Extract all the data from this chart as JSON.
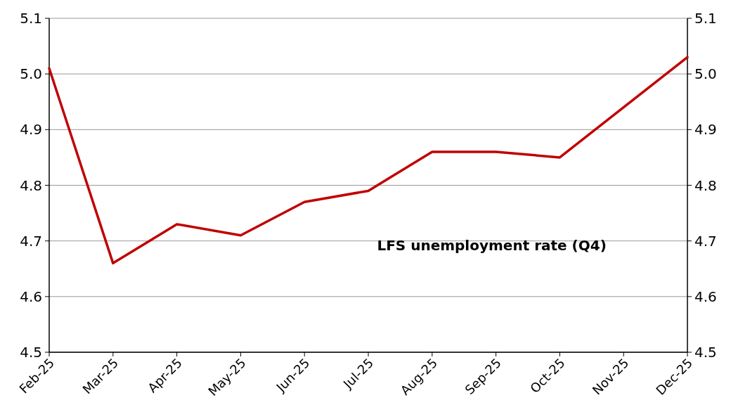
{
  "chart_data": {
    "type": "line",
    "categories": [
      "Feb-25",
      "Mar-25",
      "Apr-25",
      "May-25",
      "Jun-25",
      "Jul-25",
      "Aug-25",
      "Sep-25",
      "Oct-25",
      "Nov-25",
      "Dec-25"
    ],
    "series": [
      {
        "name": "LFS unemployment rate (Q4)",
        "color": "#c00000",
        "values": [
          5.01,
          4.66,
          4.73,
          4.71,
          4.77,
          4.79,
          4.86,
          4.86,
          4.85,
          4.94,
          5.03
        ]
      }
    ],
    "ylim": [
      4.5,
      5.1
    ],
    "yticks": [
      4.5,
      4.6,
      4.7,
      4.8,
      4.9,
      {
        "value": 5,
        "label": "5.0"
      },
      5.1
    ],
    "y2lim": [
      4.5,
      5.1
    ],
    "y2ticks": [
      4.5,
      4.6,
      4.7,
      4.8,
      4.9,
      {
        "value": 5,
        "label": "5.0"
      },
      5.1
    ],
    "grid": "y",
    "marker": "none",
    "line_style": "solid"
  }
}
